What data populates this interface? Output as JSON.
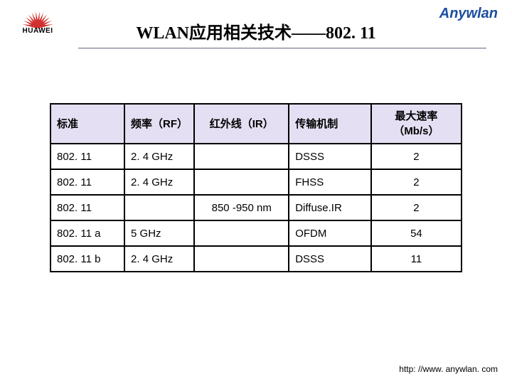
{
  "header": {
    "brand": "Anywlan",
    "brand_color": "#1a4fa0",
    "brand_fontsize": 20,
    "logo_text": "HUAWEI",
    "logo_text_color": "#000000",
    "logo_ray_color": "#d22f2f",
    "title_parts": [
      {
        "text": "WLAN",
        "class": "title-en"
      },
      {
        "text": "应用相关技术——",
        "class": ""
      },
      {
        "text": "802. 11",
        "class": "title-en"
      }
    ],
    "title_fontsize": 24,
    "title_color": "#000000"
  },
  "table": {
    "header_bg": "#e4dff2",
    "border_color": "#000000",
    "columns": [
      {
        "key": "std",
        "label": "标准",
        "class": "col-std"
      },
      {
        "key": "rf",
        "label": "频率（RF）",
        "class": "col-rf"
      },
      {
        "key": "ir",
        "label": "红外线（IR）",
        "class": "col-ir"
      },
      {
        "key": "mech",
        "label": "传输机制",
        "class": "col-mech"
      },
      {
        "key": "rate",
        "label": "最大速率（Mb/s）",
        "class": "col-rate"
      }
    ],
    "rows": [
      {
        "std": "802. 11",
        "rf": "2. 4 GHz",
        "ir": "",
        "mech": "DSSS",
        "rate": "2"
      },
      {
        "std": "802. 11",
        "rf": "2. 4 GHz",
        "ir": "",
        "mech": "FHSS",
        "rate": "2"
      },
      {
        "std": "802. 11",
        "rf": "",
        "ir": "850 -950 nm",
        "mech": "Diffuse.IR",
        "rate": "2"
      },
      {
        "std": "802. 11 a",
        "rf": "5 GHz",
        "ir": "",
        "mech": "OFDM",
        "rate": "54"
      },
      {
        "std": "802. 11 b",
        "rf": "2. 4 GHz",
        "ir": "",
        "mech": "DSSS",
        "rate": "11"
      }
    ],
    "cell_fontsize": 15
  },
  "footer": {
    "url": "http: //www. anywlan. com",
    "fontsize": 12,
    "color": "#000000"
  }
}
